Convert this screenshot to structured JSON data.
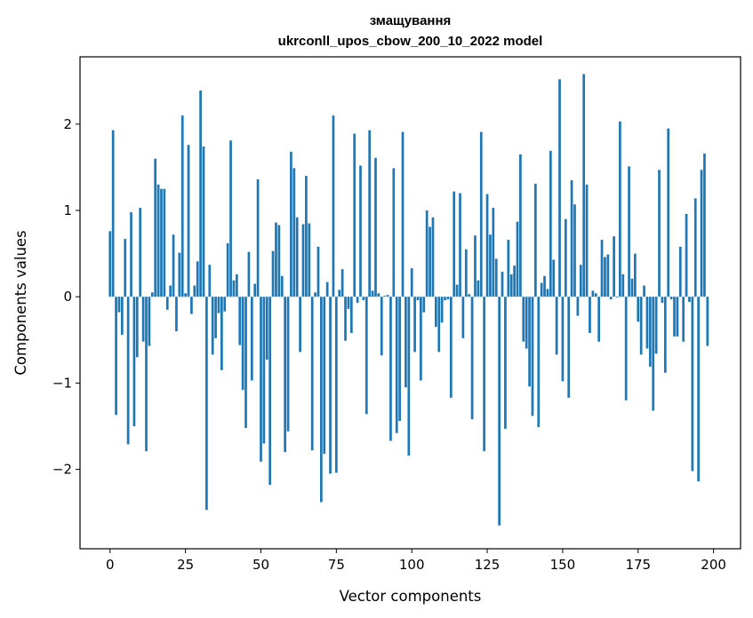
{
  "chart_data": {
    "type": "bar",
    "title": [
      "змащування",
      "ukrconll_upos_cbow_200_10_2022 model"
    ],
    "xlabel": "Vector components",
    "ylabel": "Components values",
    "xlim": [
      -9.95,
      208.95
    ],
    "ylim": [
      -2.92,
      2.78
    ],
    "xticks": [
      0,
      25,
      50,
      75,
      100,
      125,
      150,
      175,
      200
    ],
    "yticks": [
      -2,
      -1,
      0,
      1,
      2
    ],
    "ytick_labels": [
      "−2",
      "−1",
      "0",
      "1",
      "2"
    ],
    "bar_color": "#1f77b4",
    "grid": false,
    "values": [
      0.76,
      1.93,
      -1.37,
      -0.18,
      -0.44,
      0.67,
      -1.71,
      0.98,
      -1.5,
      -0.7,
      1.03,
      -0.52,
      -1.79,
      -0.57,
      0.05,
      1.6,
      1.3,
      1.25,
      1.25,
      -0.15,
      0.13,
      0.72,
      -0.4,
      0.51,
      2.1,
      0.04,
      1.76,
      -0.2,
      0.13,
      0.41,
      2.39,
      1.74,
      -2.47,
      0.37,
      -0.67,
      -0.48,
      -0.19,
      -0.85,
      -0.17,
      0.62,
      1.81,
      0.19,
      0.26,
      -0.56,
      -1.08,
      -1.52,
      0.52,
      -0.97,
      0.15,
      1.36,
      -1.91,
      -1.7,
      -0.73,
      -2.18,
      0.53,
      0.86,
      0.83,
      0.24,
      -1.8,
      -1.56,
      1.68,
      1.49,
      0.92,
      -0.64,
      0.84,
      1.4,
      0.85,
      -1.78,
      0.05,
      0.58,
      -2.38,
      -1.82,
      0.17,
      -2.05,
      2.1,
      -2.04,
      0.08,
      0.32,
      -0.51,
      -0.14,
      -0.42,
      1.89,
      -0.07,
      1.52,
      -0.04,
      -1.36,
      1.93,
      0.07,
      1.61,
      0.04,
      -0.68,
      0.01,
      0.02,
      -1.67,
      1.49,
      -1.58,
      -1.44,
      1.91,
      -1.05,
      -1.84,
      0.33,
      -0.64,
      -0.04,
      -0.97,
      -0.18,
      1.0,
      0.81,
      0.92,
      -0.35,
      -0.64,
      -0.3,
      -0.04,
      -0.03,
      -1.17,
      1.22,
      0.14,
      1.2,
      -0.48,
      0.55,
      0.03,
      -1.42,
      0.71,
      0.19,
      1.91,
      -1.79,
      1.19,
      0.72,
      1.03,
      0.44,
      -2.65,
      0.29,
      -1.53,
      0.66,
      0.26,
      0.36,
      0.87,
      1.65,
      -0.52,
      -0.6,
      -1.04,
      -1.38,
      1.31,
      -1.51,
      0.16,
      0.24,
      0.09,
      1.69,
      0.43,
      -0.67,
      2.52,
      -0.98,
      0.9,
      -1.17,
      1.35,
      1.07,
      -0.22,
      0.37,
      2.58,
      1.3,
      -0.42,
      0.07,
      0.04,
      -0.52,
      0.66,
      0.46,
      0.49,
      -0.03,
      0.7,
      -0.01,
      2.03,
      0.26,
      -1.2,
      1.51,
      0.21,
      0.5,
      -0.29,
      -0.67,
      0.13,
      -0.6,
      -0.81,
      -1.32,
      -0.66,
      1.47,
      -0.07,
      -0.88,
      1.95,
      -0.03,
      -0.46,
      -0.46,
      0.58,
      -0.52,
      0.96,
      -0.06,
      -2.02,
      1.14,
      -2.14,
      1.47,
      1.66,
      -0.57
    ]
  }
}
